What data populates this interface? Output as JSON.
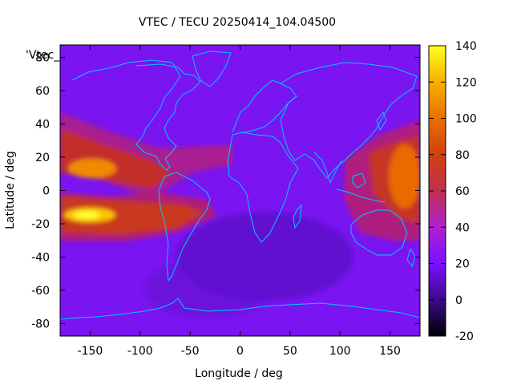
{
  "title": "VTEC / TECU 20250414_104.04500",
  "key_label": "'Vtec_",
  "x_axis": {
    "label": "Longitude / deg",
    "range": [
      -180,
      180
    ],
    "ticks": [
      -150,
      -100,
      -50,
      0,
      50,
      100,
      150
    ],
    "tick_labels": [
      "-150",
      "-100",
      "-50",
      "0",
      "50",
      "100",
      "150"
    ]
  },
  "y_axis": {
    "label": "Latitude / deg",
    "range": [
      -87.5,
      87.5
    ],
    "ticks": [
      -80,
      -60,
      -40,
      -20,
      0,
      20,
      40,
      60,
      80
    ],
    "tick_labels": [
      "-80",
      "-60",
      "-40",
      "-20",
      "0",
      "20",
      "40",
      "60",
      "80"
    ]
  },
  "colorbar": {
    "range": [
      -20,
      140
    ],
    "ticks": [
      -20,
      0,
      20,
      40,
      60,
      80,
      100,
      120,
      140
    ],
    "tick_labels": [
      "-20",
      "0",
      "20",
      "40",
      "60",
      "80",
      "100",
      "120",
      "140"
    ],
    "palette": "black-purple-red-yellow"
  },
  "colors": {
    "coastline": "#00c8ff",
    "background": "#ffffff"
  },
  "map_layers": [
    "vtec-heatmap",
    "coastlines"
  ]
}
